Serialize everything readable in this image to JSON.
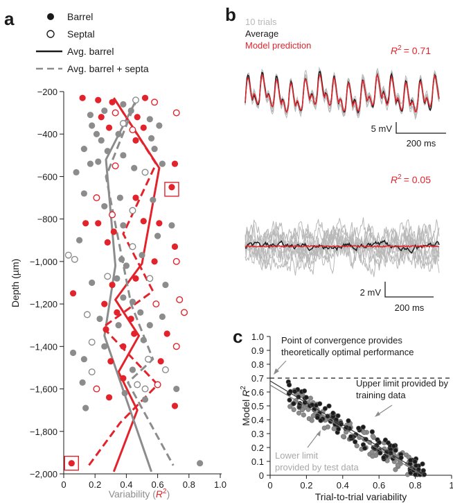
{
  "colors": {
    "red": "#e3232b",
    "gray": "#8c8c8c",
    "black": "#1a1a1a",
    "lightgray": "#b8b8b8"
  },
  "panel_letters": [
    "a",
    "b",
    "c"
  ],
  "legend_a": [
    {
      "label": "Barrel",
      "marker": "filled-circle"
    },
    {
      "label": "Septal",
      "marker": "open-circle"
    },
    {
      "label": "Avg. barrel",
      "marker": "solid-line"
    },
    {
      "label": "Avg. barrel + septa",
      "marker": "dashed-line"
    }
  ],
  "legend_b": {
    "trials": "10 trials",
    "average": "Average",
    "model": "Model prediction"
  },
  "annotations_b": {
    "r2_top": "= 0.71",
    "r2_bottom": "= 0.05",
    "r2_symbol": "R",
    "r2_sup": "2",
    "scale_top_v": "5 mV",
    "scale_top_t": "200 ms",
    "scale_bottom_v": "2 mV",
    "scale_bottom_t": "200 ms"
  },
  "annotations_c": {
    "convergence": [
      "Point of convergence provides",
      "theoretically optimal performance"
    ],
    "upper": [
      "Upper limit provided by",
      "training data"
    ],
    "lower": [
      "Lower limit",
      "provided by test data"
    ]
  },
  "chart_data": [
    {
      "panel": "a",
      "type": "scatter",
      "xlabel": "Variability (R2)",
      "xlabel_parts": {
        "text": "Variability (",
        "symbol": "R",
        "sup": "2",
        "close": ")"
      },
      "ylabel": "Depth (µm)",
      "xlim": [
        0,
        1.0
      ],
      "ylim": [
        -2000,
        -200
      ],
      "xticks": [
        0,
        0.2,
        0.4,
        0.6,
        0.8,
        1.0
      ],
      "xtick_labels": [
        "0",
        "0.2",
        "0.4",
        "0.6",
        "0.8",
        "1.0"
      ],
      "yticks": [
        -200,
        -400,
        -600,
        -800,
        -1000,
        -1200,
        -1400,
        -1600,
        -1800,
        -2000
      ],
      "ytick_labels": [
        "−200",
        "−400",
        "−600",
        "−800",
        "−1,000",
        "−1,200",
        "−1,400",
        "−1,600",
        "−1,800",
        "−2,000"
      ],
      "points": [
        {
          "x": 0.12,
          "y": -230,
          "c": "red",
          "f": 1
        },
        {
          "x": 0.22,
          "y": -240,
          "c": "red",
          "f": 1
        },
        {
          "x": 0.31,
          "y": -250,
          "c": "red",
          "f": 1
        },
        {
          "x": 0.38,
          "y": -260,
          "c": "gray",
          "f": 1
        },
        {
          "x": 0.46,
          "y": -240,
          "c": "gray",
          "f": 0
        },
        {
          "x": 0.52,
          "y": -230,
          "c": "red",
          "f": 1
        },
        {
          "x": 0.58,
          "y": -250,
          "c": "red",
          "f": 0
        },
        {
          "x": 0.43,
          "y": -290,
          "c": "gray",
          "f": 1
        },
        {
          "x": 0.26,
          "y": -290,
          "c": "gray",
          "f": 1
        },
        {
          "x": 0.33,
          "y": -300,
          "c": "red",
          "f": 0
        },
        {
          "x": 0.17,
          "y": -310,
          "c": "gray",
          "f": 1
        },
        {
          "x": 0.24,
          "y": -320,
          "c": "red",
          "f": 1
        },
        {
          "x": 0.47,
          "y": -320,
          "c": "red",
          "f": 1
        },
        {
          "x": 0.72,
          "y": -300,
          "c": "red",
          "f": 0
        },
        {
          "x": 0.55,
          "y": -330,
          "c": "gray",
          "f": 1
        },
        {
          "x": 0.38,
          "y": -350,
          "c": "gray",
          "f": 0
        },
        {
          "x": 0.18,
          "y": -360,
          "c": "gray",
          "f": 1
        },
        {
          "x": 0.29,
          "y": -370,
          "c": "red",
          "f": 1
        },
        {
          "x": 0.44,
          "y": -380,
          "c": "red",
          "f": 0
        },
        {
          "x": 0.51,
          "y": -370,
          "c": "red",
          "f": 1
        },
        {
          "x": 0.61,
          "y": -360,
          "c": "gray",
          "f": 1
        },
        {
          "x": 0.21,
          "y": -400,
          "c": "gray",
          "f": 1
        },
        {
          "x": 0.35,
          "y": -400,
          "c": "gray",
          "f": 1
        },
        {
          "x": 0.24,
          "y": -430,
          "c": "gray",
          "f": 1
        },
        {
          "x": 0.46,
          "y": -430,
          "c": "red",
          "f": 1
        },
        {
          "x": 0.56,
          "y": -420,
          "c": "gray",
          "f": 1
        },
        {
          "x": 0.13,
          "y": -470,
          "c": "gray",
          "f": 1
        },
        {
          "x": 0.28,
          "y": -480,
          "c": "gray",
          "f": 1
        },
        {
          "x": 0.58,
          "y": -470,
          "c": "gray",
          "f": 1
        },
        {
          "x": 0.38,
          "y": -500,
          "c": "gray",
          "f": 1
        },
        {
          "x": 0.22,
          "y": -530,
          "c": "gray",
          "f": 1
        },
        {
          "x": 0.17,
          "y": -540,
          "c": "gray",
          "f": 1
        },
        {
          "x": 0.33,
          "y": -550,
          "c": "red",
          "f": 0
        },
        {
          "x": 0.45,
          "y": -560,
          "c": "gray",
          "f": 1
        },
        {
          "x": 0.63,
          "y": -540,
          "c": "gray",
          "f": 1
        },
        {
          "x": 0.71,
          "y": -540,
          "c": "red",
          "f": 1
        },
        {
          "x": 0.08,
          "y": -580,
          "c": "gray",
          "f": 1
        },
        {
          "x": 0.52,
          "y": -580,
          "c": "gray",
          "f": 0
        },
        {
          "x": 0.69,
          "y": -650,
          "c": "red",
          "f": 1
        },
        {
          "x": 0.13,
          "y": -680,
          "c": "gray",
          "f": 1
        },
        {
          "x": 0.21,
          "y": -700,
          "c": "red",
          "f": 0
        },
        {
          "x": 0.36,
          "y": -700,
          "c": "gray",
          "f": 1
        },
        {
          "x": 0.46,
          "y": -700,
          "c": "red",
          "f": 1
        },
        {
          "x": 0.57,
          "y": -710,
          "c": "gray",
          "f": 1
        },
        {
          "x": 0.26,
          "y": -740,
          "c": "gray",
          "f": 1
        },
        {
          "x": 0.44,
          "y": -760,
          "c": "gray",
          "f": 0
        },
        {
          "x": 0.31,
          "y": -780,
          "c": "red",
          "f": 0
        },
        {
          "x": 0.14,
          "y": -820,
          "c": "red",
          "f": 1
        },
        {
          "x": 0.22,
          "y": -820,
          "c": "red",
          "f": 1
        },
        {
          "x": 0.38,
          "y": -830,
          "c": "gray",
          "f": 1
        },
        {
          "x": 0.51,
          "y": -810,
          "c": "red",
          "f": 1
        },
        {
          "x": 0.61,
          "y": -820,
          "c": "red",
          "f": 1
        },
        {
          "x": 0.69,
          "y": -830,
          "c": "gray",
          "f": 1
        },
        {
          "x": 0.32,
          "y": -860,
          "c": "red",
          "f": 1
        },
        {
          "x": 0.6,
          "y": -880,
          "c": "gray",
          "f": 1
        },
        {
          "x": 0.1,
          "y": -900,
          "c": "gray",
          "f": 1
        },
        {
          "x": 0.28,
          "y": -910,
          "c": "red",
          "f": 1
        },
        {
          "x": 0.44,
          "y": -930,
          "c": "gray",
          "f": 0
        },
        {
          "x": 0.71,
          "y": -930,
          "c": "red",
          "f": 1
        },
        {
          "x": 0.03,
          "y": -970,
          "c": "gray",
          "f": 0
        },
        {
          "x": 0.07,
          "y": -990,
          "c": "gray",
          "f": 0
        },
        {
          "x": 0.37,
          "y": -990,
          "c": "gray",
          "f": 1
        },
        {
          "x": 0.5,
          "y": -970,
          "c": "gray",
          "f": 1
        },
        {
          "x": 0.58,
          "y": -1000,
          "c": "red",
          "f": 1
        },
        {
          "x": 0.72,
          "y": -1000,
          "c": "red",
          "f": 0
        },
        {
          "x": 0.4,
          "y": -1020,
          "c": "gray",
          "f": 1
        },
        {
          "x": 0.28,
          "y": -1070,
          "c": "gray",
          "f": 0
        },
        {
          "x": 0.34,
          "y": -1080,
          "c": "gray",
          "f": 1
        },
        {
          "x": 0.46,
          "y": -1080,
          "c": "red",
          "f": 1
        },
        {
          "x": 0.55,
          "y": -1080,
          "c": "gray",
          "f": 0
        },
        {
          "x": 0.18,
          "y": -1100,
          "c": "gray",
          "f": 1
        },
        {
          "x": 0.31,
          "y": -1110,
          "c": "red",
          "f": 1
        },
        {
          "x": 0.65,
          "y": -1110,
          "c": "gray",
          "f": 1
        },
        {
          "x": 0.06,
          "y": -1150,
          "c": "red",
          "f": 1
        },
        {
          "x": 0.38,
          "y": -1170,
          "c": "gray",
          "f": 1
        },
        {
          "x": 0.44,
          "y": -1190,
          "c": "gray",
          "f": 1
        },
        {
          "x": 0.74,
          "y": -1180,
          "c": "red",
          "f": 0
        },
        {
          "x": 0.26,
          "y": -1200,
          "c": "red",
          "f": 1
        },
        {
          "x": 0.59,
          "y": -1200,
          "c": "red",
          "f": 0
        },
        {
          "x": 0.15,
          "y": -1250,
          "c": "gray",
          "f": 0
        },
        {
          "x": 0.34,
          "y": -1240,
          "c": "red",
          "f": 1
        },
        {
          "x": 0.49,
          "y": -1240,
          "c": "gray",
          "f": 1
        },
        {
          "x": 0.23,
          "y": -1270,
          "c": "gray",
          "f": 1
        },
        {
          "x": 0.43,
          "y": -1270,
          "c": "red",
          "f": 1
        },
        {
          "x": 0.63,
          "y": -1260,
          "c": "gray",
          "f": 1
        },
        {
          "x": 0.77,
          "y": -1240,
          "c": "red",
          "f": 0
        },
        {
          "x": 0.35,
          "y": -1300,
          "c": "gray",
          "f": 1
        },
        {
          "x": 0.55,
          "y": -1300,
          "c": "gray",
          "f": 1
        },
        {
          "x": 0.27,
          "y": -1320,
          "c": "red",
          "f": 1
        },
        {
          "x": 0.45,
          "y": -1340,
          "c": "red",
          "f": 1
        },
        {
          "x": 0.66,
          "y": -1340,
          "c": "red",
          "f": 1
        },
        {
          "x": 0.18,
          "y": -1380,
          "c": "gray",
          "f": 0
        },
        {
          "x": 0.51,
          "y": -1370,
          "c": "gray",
          "f": 1
        },
        {
          "x": 0.26,
          "y": -1400,
          "c": "gray",
          "f": 1
        },
        {
          "x": 0.38,
          "y": -1400,
          "c": "red",
          "f": 1
        },
        {
          "x": 0.72,
          "y": -1400,
          "c": "red",
          "f": 0
        },
        {
          "x": 0.06,
          "y": -1430,
          "c": "gray",
          "f": 1
        },
        {
          "x": 0.13,
          "y": -1460,
          "c": "gray",
          "f": 1
        },
        {
          "x": 0.3,
          "y": -1470,
          "c": "red",
          "f": 1
        },
        {
          "x": 0.54,
          "y": -1460,
          "c": "gray",
          "f": 0
        },
        {
          "x": 0.62,
          "y": -1470,
          "c": "red",
          "f": 1
        },
        {
          "x": 0.18,
          "y": -1520,
          "c": "gray",
          "f": 0
        },
        {
          "x": 0.44,
          "y": -1510,
          "c": "gray",
          "f": 1
        },
        {
          "x": 0.65,
          "y": -1510,
          "c": "gray",
          "f": 0
        },
        {
          "x": 0.38,
          "y": -1550,
          "c": "red",
          "f": 1
        },
        {
          "x": 0.12,
          "y": -1570,
          "c": "gray",
          "f": 1
        },
        {
          "x": 0.21,
          "y": -1600,
          "c": "red",
          "f": 0
        },
        {
          "x": 0.47,
          "y": -1580,
          "c": "gray",
          "f": 0
        },
        {
          "x": 0.52,
          "y": -1600,
          "c": "gray",
          "f": 0
        },
        {
          "x": 0.6,
          "y": -1580,
          "c": "red",
          "f": 0
        },
        {
          "x": 0.72,
          "y": -1600,
          "c": "gray",
          "f": 1
        },
        {
          "x": 0.39,
          "y": -1620,
          "c": "gray",
          "f": 1
        },
        {
          "x": 0.29,
          "y": -1640,
          "c": "red",
          "f": 1
        },
        {
          "x": 0.52,
          "y": -1650,
          "c": "gray",
          "f": 1
        },
        {
          "x": 0.14,
          "y": -1690,
          "c": "gray",
          "f": 1
        },
        {
          "x": 0.71,
          "y": -1680,
          "c": "red",
          "f": 1
        },
        {
          "x": 0.05,
          "y": -1950,
          "c": "red",
          "f": 1
        },
        {
          "x": 0.87,
          "y": -1950,
          "c": "gray",
          "f": 1
        }
      ],
      "lines": [
        {
          "name": "Avg. barrel",
          "color": "red",
          "dash": false,
          "points": [
            [
              0.32,
              -230
            ],
            [
              0.61,
              -560
            ],
            [
              0.5,
              -1010
            ],
            [
              0.33,
              -1180
            ],
            [
              0.48,
              -1350
            ],
            [
              0.35,
              -1520
            ],
            [
              0.47,
              -1700
            ],
            [
              0.32,
              -1990
            ]
          ]
        },
        {
          "name": "Avg. barrel",
          "color": "gray",
          "dash": false,
          "points": [
            [
              0.47,
              -230
            ],
            [
              0.27,
              -520
            ],
            [
              0.33,
              -1020
            ],
            [
              0.26,
              -1350
            ],
            [
              0.56,
              -1990
            ]
          ]
        },
        {
          "name": "Avg. barrel + septa",
          "color": "red",
          "dash": true,
          "points": [
            [
              0.32,
              -230
            ],
            [
              0.59,
              -540
            ],
            [
              0.38,
              -870
            ],
            [
              0.57,
              -1140
            ],
            [
              0.25,
              -1310
            ],
            [
              0.6,
              -1580
            ],
            [
              0.36,
              -1760
            ],
            [
              0.16,
              -1960
            ]
          ]
        },
        {
          "name": "Avg. barrel + septa",
          "color": "gray",
          "dash": true,
          "points": [
            [
              0.47,
              -230
            ],
            [
              0.27,
              -600
            ],
            [
              0.43,
              -1200
            ],
            [
              0.57,
              -1460
            ],
            [
              0.41,
              -1570
            ],
            [
              0.7,
              -1960
            ]
          ]
        }
      ],
      "highlight_boxes": [
        {
          "x": 0.05,
          "y": -1950
        },
        {
          "x": 0.69,
          "y": -660
        }
      ]
    },
    {
      "panel": "b",
      "type": "line",
      "traces": [
        {
          "name": "10 trials",
          "color": "lightgray"
        },
        {
          "name": "Average",
          "color": "black"
        },
        {
          "name": "Model prediction",
          "color": "red"
        }
      ],
      "top_r2": 0.71,
      "bottom_r2": 0.05,
      "scale_bars": [
        {
          "voltage": "5 mV",
          "time": "200 ms"
        },
        {
          "voltage": "2 mV",
          "time": "200 ms"
        }
      ]
    },
    {
      "panel": "c",
      "type": "scatter",
      "xlabel": "Trial-to-trial variability",
      "ylabel": "Model R2",
      "ylabel_parts": {
        "text": "Model ",
        "symbol": "R",
        "sup": "2"
      },
      "xlim": [
        0,
        1
      ],
      "ylim": [
        0,
        1.0
      ],
      "xticks": [
        0,
        0.2,
        0.4,
        0.6,
        0.8,
        1
      ],
      "xtick_labels": [
        "0",
        "0.2",
        "0.4",
        "0.6",
        "0.8",
        "1"
      ],
      "yticks": [
        0,
        0.1,
        0.2,
        0.3,
        0.4,
        0.5,
        0.6,
        0.7,
        0.8,
        0.9,
        1.0
      ],
      "ytick_labels": [
        "0",
        "0.1",
        "0.2",
        "0.3",
        "0.4",
        "0.5",
        "0.6",
        "0.7",
        "0.8",
        "0.9",
        "1.0"
      ],
      "convergence_level": 0.7,
      "series": [
        {
          "name": "training data",
          "color": "black",
          "fit": [
            [
              0,
              0.68
            ],
            [
              0.86,
              0
            ]
          ]
        },
        {
          "name": "test data",
          "color": "gray",
          "fit": [
            [
              0,
              0.65
            ],
            [
              0.84,
              0
            ]
          ]
        }
      ]
    }
  ]
}
